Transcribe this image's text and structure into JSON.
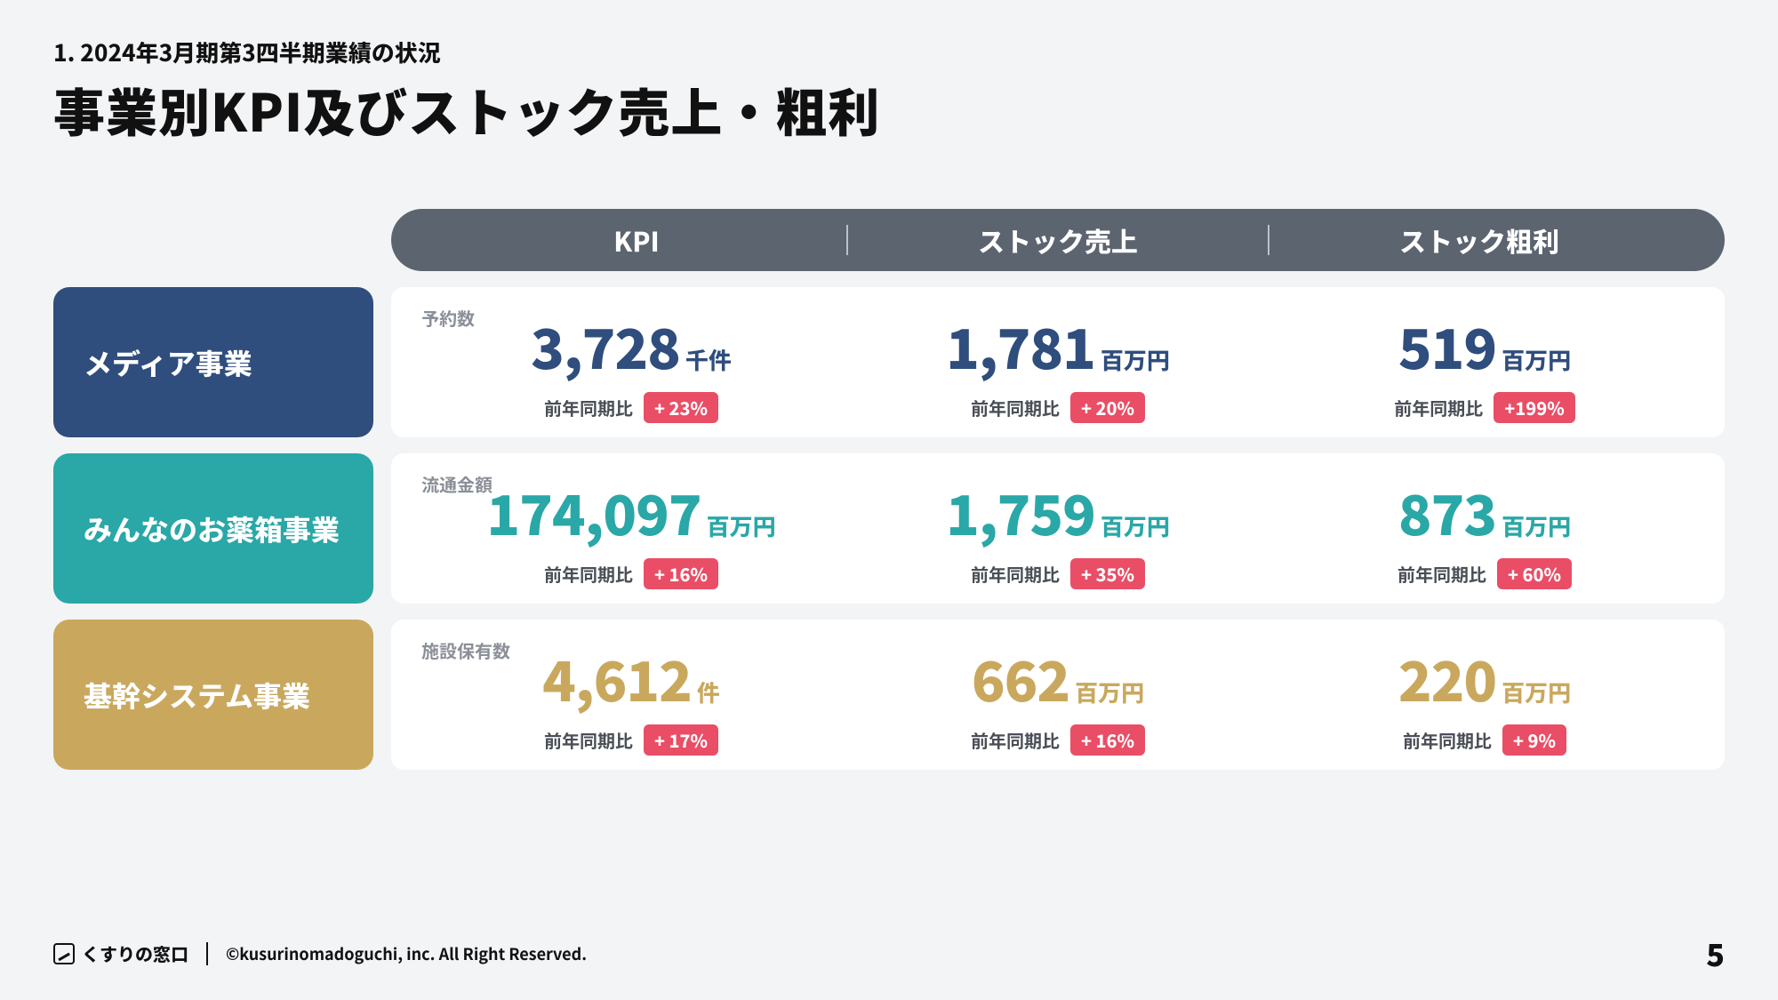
{
  "eyebrow": "1. 2024年3月期第3四半期業績の状況",
  "title": "事業別KPI及びストック売上・粗利",
  "header": {
    "bg": "#5c6470",
    "cols": [
      "KPI",
      "ストック売上",
      "ストック粗利"
    ]
  },
  "yoy_label": "前年同期比",
  "badge_bg": "#e94e66",
  "rows": [
    {
      "name": "メディア事業",
      "label_bg": "#2f4d7d",
      "accent": "#2f4d7d",
      "kpi_sublabel": "予約数",
      "metrics": [
        {
          "value": "3,728",
          "unit": "千件",
          "yoy": "+ 23%"
        },
        {
          "value": "1,781",
          "unit": "百万円",
          "yoy": "+ 20%"
        },
        {
          "value": "519",
          "unit": "百万円",
          "yoy": "+199%"
        }
      ]
    },
    {
      "name": "みんなのお薬箱事業",
      "label_bg": "#2aa7a7",
      "accent": "#2aa7a7",
      "kpi_sublabel": "流通金額",
      "metrics": [
        {
          "value": "174,097",
          "unit": "百万円",
          "yoy": "+ 16%"
        },
        {
          "value": "1,759",
          "unit": "百万円",
          "yoy": "+ 35%"
        },
        {
          "value": "873",
          "unit": "百万円",
          "yoy": "+ 60%"
        }
      ]
    },
    {
      "name": "基幹システム事業",
      "label_bg": "#c9a85e",
      "accent": "#c9a85e",
      "kpi_sublabel": "施設保有数",
      "metrics": [
        {
          "value": "4,612",
          "unit": "件",
          "yoy": "+ 17%"
        },
        {
          "value": "662",
          "unit": "百万円",
          "yoy": "+ 16%"
        },
        {
          "value": "220",
          "unit": "百万円",
          "yoy": "+  9%"
        }
      ]
    }
  ],
  "footer": {
    "logo_text": "くすりの窓口",
    "copyright": "©kusurinomadoguchi, inc. All Right Reserved.",
    "page": "5"
  }
}
